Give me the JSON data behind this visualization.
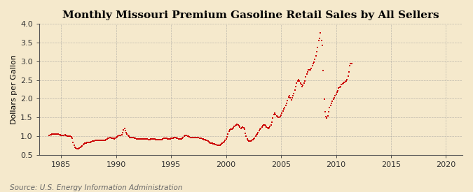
{
  "title": "Monthly Missouri Premium Gasoline Retail Sales by All Sellers",
  "ylabel": "Dollars per Gallon",
  "source": "Source: U.S. Energy Information Administration",
  "ylim": [
    0.5,
    4.0
  ],
  "xlim": [
    1983.0,
    2021.5
  ],
  "yticks": [
    0.5,
    1.0,
    1.5,
    2.0,
    2.5,
    3.0,
    3.5,
    4.0
  ],
  "xticks": [
    1985,
    1990,
    1995,
    2000,
    2005,
    2010,
    2015,
    2020
  ],
  "bg_color": "#f5e9cc",
  "plot_bg_color": "#f5e9cc",
  "line_color": "#cc0000",
  "marker_color": "#cc0000",
  "grid_color": "#999999",
  "title_fontsize": 11,
  "label_fontsize": 8,
  "tick_fontsize": 8,
  "source_fontsize": 7.5,
  "data": [
    [
      1983.917,
      1.02
    ],
    [
      1984.0,
      1.03
    ],
    [
      1984.083,
      1.04
    ],
    [
      1984.167,
      1.05
    ],
    [
      1984.25,
      1.06
    ],
    [
      1984.333,
      1.06
    ],
    [
      1984.417,
      1.06
    ],
    [
      1984.5,
      1.05
    ],
    [
      1984.583,
      1.05
    ],
    [
      1984.667,
      1.05
    ],
    [
      1984.75,
      1.05
    ],
    [
      1984.833,
      1.04
    ],
    [
      1984.917,
      1.03
    ],
    [
      1985.0,
      1.02
    ],
    [
      1985.083,
      1.01
    ],
    [
      1985.167,
      1.02
    ],
    [
      1985.25,
      1.02
    ],
    [
      1985.333,
      1.03
    ],
    [
      1985.417,
      1.02
    ],
    [
      1985.5,
      1.01
    ],
    [
      1985.583,
      1.0
    ],
    [
      1985.667,
      1.0
    ],
    [
      1985.75,
      0.99
    ],
    [
      1985.833,
      0.99
    ],
    [
      1985.917,
      0.98
    ],
    [
      1986.0,
      0.94
    ],
    [
      1986.083,
      0.83
    ],
    [
      1986.167,
      0.76
    ],
    [
      1986.25,
      0.7
    ],
    [
      1986.333,
      0.68
    ],
    [
      1986.417,
      0.67
    ],
    [
      1986.5,
      0.66
    ],
    [
      1986.583,
      0.67
    ],
    [
      1986.667,
      0.68
    ],
    [
      1986.75,
      0.7
    ],
    [
      1986.833,
      0.72
    ],
    [
      1986.917,
      0.74
    ],
    [
      1987.0,
      0.77
    ],
    [
      1987.083,
      0.79
    ],
    [
      1987.167,
      0.81
    ],
    [
      1987.25,
      0.82
    ],
    [
      1987.333,
      0.83
    ],
    [
      1987.417,
      0.83
    ],
    [
      1987.5,
      0.83
    ],
    [
      1987.583,
      0.83
    ],
    [
      1987.667,
      0.84
    ],
    [
      1987.75,
      0.85
    ],
    [
      1987.833,
      0.86
    ],
    [
      1987.917,
      0.87
    ],
    [
      1988.0,
      0.87
    ],
    [
      1988.083,
      0.88
    ],
    [
      1988.167,
      0.88
    ],
    [
      1988.25,
      0.89
    ],
    [
      1988.333,
      0.89
    ],
    [
      1988.417,
      0.89
    ],
    [
      1988.5,
      0.89
    ],
    [
      1988.583,
      0.89
    ],
    [
      1988.667,
      0.88
    ],
    [
      1988.75,
      0.88
    ],
    [
      1988.833,
      0.88
    ],
    [
      1988.917,
      0.88
    ],
    [
      1989.0,
      0.89
    ],
    [
      1989.083,
      0.9
    ],
    [
      1989.167,
      0.92
    ],
    [
      1989.25,
      0.94
    ],
    [
      1989.333,
      0.95
    ],
    [
      1989.417,
      0.96
    ],
    [
      1989.5,
      0.96
    ],
    [
      1989.583,
      0.95
    ],
    [
      1989.667,
      0.95
    ],
    [
      1989.75,
      0.94
    ],
    [
      1989.833,
      0.93
    ],
    [
      1989.917,
      0.94
    ],
    [
      1990.0,
      0.96
    ],
    [
      1990.083,
      0.98
    ],
    [
      1990.167,
      1.0
    ],
    [
      1990.25,
      1.01
    ],
    [
      1990.333,
      1.01
    ],
    [
      1990.417,
      1.02
    ],
    [
      1990.5,
      1.04
    ],
    [
      1990.583,
      1.1
    ],
    [
      1990.667,
      1.17
    ],
    [
      1990.75,
      1.2
    ],
    [
      1990.833,
      1.15
    ],
    [
      1990.917,
      1.1
    ],
    [
      1991.0,
      1.06
    ],
    [
      1991.083,
      1.02
    ],
    [
      1991.167,
      0.99
    ],
    [
      1991.25,
      0.97
    ],
    [
      1991.333,
      0.97
    ],
    [
      1991.417,
      0.97
    ],
    [
      1991.5,
      0.96
    ],
    [
      1991.583,
      0.96
    ],
    [
      1991.667,
      0.95
    ],
    [
      1991.75,
      0.94
    ],
    [
      1991.833,
      0.93
    ],
    [
      1991.917,
      0.93
    ],
    [
      1992.0,
      0.93
    ],
    [
      1992.083,
      0.93
    ],
    [
      1992.167,
      0.93
    ],
    [
      1992.25,
      0.93
    ],
    [
      1992.333,
      0.93
    ],
    [
      1992.417,
      0.93
    ],
    [
      1992.5,
      0.93
    ],
    [
      1992.583,
      0.93
    ],
    [
      1992.667,
      0.92
    ],
    [
      1992.75,
      0.92
    ],
    [
      1992.833,
      0.92
    ],
    [
      1992.917,
      0.91
    ],
    [
      1993.0,
      0.91
    ],
    [
      1993.083,
      0.91
    ],
    [
      1993.167,
      0.92
    ],
    [
      1993.25,
      0.92
    ],
    [
      1993.333,
      0.92
    ],
    [
      1993.417,
      0.92
    ],
    [
      1993.5,
      0.92
    ],
    [
      1993.583,
      0.91
    ],
    [
      1993.667,
      0.91
    ],
    [
      1993.75,
      0.91
    ],
    [
      1993.833,
      0.9
    ],
    [
      1993.917,
      0.9
    ],
    [
      1994.0,
      0.9
    ],
    [
      1994.083,
      0.9
    ],
    [
      1994.167,
      0.91
    ],
    [
      1994.25,
      0.93
    ],
    [
      1994.333,
      0.94
    ],
    [
      1994.417,
      0.95
    ],
    [
      1994.5,
      0.95
    ],
    [
      1994.583,
      0.94
    ],
    [
      1994.667,
      0.93
    ],
    [
      1994.75,
      0.93
    ],
    [
      1994.833,
      0.93
    ],
    [
      1994.917,
      0.93
    ],
    [
      1995.0,
      0.94
    ],
    [
      1995.083,
      0.94
    ],
    [
      1995.167,
      0.95
    ],
    [
      1995.25,
      0.96
    ],
    [
      1995.333,
      0.96
    ],
    [
      1995.417,
      0.96
    ],
    [
      1995.5,
      0.95
    ],
    [
      1995.583,
      0.94
    ],
    [
      1995.667,
      0.93
    ],
    [
      1995.75,
      0.92
    ],
    [
      1995.833,
      0.92
    ],
    [
      1995.917,
      0.92
    ],
    [
      1996.0,
      0.95
    ],
    [
      1996.083,
      0.97
    ],
    [
      1996.167,
      1.0
    ],
    [
      1996.25,
      1.02
    ],
    [
      1996.333,
      1.02
    ],
    [
      1996.417,
      1.01
    ],
    [
      1996.5,
      1.0
    ],
    [
      1996.583,
      0.99
    ],
    [
      1996.667,
      0.98
    ],
    [
      1996.75,
      0.97
    ],
    [
      1996.833,
      0.96
    ],
    [
      1996.917,
      0.96
    ],
    [
      1997.0,
      0.96
    ],
    [
      1997.083,
      0.97
    ],
    [
      1997.167,
      0.97
    ],
    [
      1997.25,
      0.97
    ],
    [
      1997.333,
      0.97
    ],
    [
      1997.417,
      0.97
    ],
    [
      1997.5,
      0.96
    ],
    [
      1997.583,
      0.95
    ],
    [
      1997.667,
      0.95
    ],
    [
      1997.75,
      0.94
    ],
    [
      1997.833,
      0.93
    ],
    [
      1997.917,
      0.92
    ],
    [
      1998.0,
      0.91
    ],
    [
      1998.083,
      0.9
    ],
    [
      1998.167,
      0.89
    ],
    [
      1998.25,
      0.88
    ],
    [
      1998.333,
      0.87
    ],
    [
      1998.417,
      0.85
    ],
    [
      1998.5,
      0.84
    ],
    [
      1998.583,
      0.82
    ],
    [
      1998.667,
      0.81
    ],
    [
      1998.75,
      0.81
    ],
    [
      1998.833,
      0.8
    ],
    [
      1998.917,
      0.79
    ],
    [
      1999.0,
      0.78
    ],
    [
      1999.083,
      0.77
    ],
    [
      1999.167,
      0.76
    ],
    [
      1999.25,
      0.75
    ],
    [
      1999.333,
      0.75
    ],
    [
      1999.417,
      0.76
    ],
    [
      1999.5,
      0.78
    ],
    [
      1999.583,
      0.79
    ],
    [
      1999.667,
      0.81
    ],
    [
      1999.75,
      0.83
    ],
    [
      1999.833,
      0.85
    ],
    [
      1999.917,
      0.88
    ],
    [
      2000.0,
      0.93
    ],
    [
      2000.083,
      0.98
    ],
    [
      2000.167,
      1.06
    ],
    [
      2000.25,
      1.13
    ],
    [
      2000.333,
      1.16
    ],
    [
      2000.417,
      1.18
    ],
    [
      2000.5,
      1.18
    ],
    [
      2000.583,
      1.2
    ],
    [
      2000.667,
      1.23
    ],
    [
      2000.75,
      1.26
    ],
    [
      2000.833,
      1.28
    ],
    [
      2000.917,
      1.3
    ],
    [
      2001.0,
      1.32
    ],
    [
      2001.083,
      1.3
    ],
    [
      2001.167,
      1.27
    ],
    [
      2001.25,
      1.24
    ],
    [
      2001.333,
      1.21
    ],
    [
      2001.417,
      1.23
    ],
    [
      2001.5,
      1.25
    ],
    [
      2001.583,
      1.22
    ],
    [
      2001.667,
      1.18
    ],
    [
      2001.75,
      1.08
    ],
    [
      2001.833,
      1.0
    ],
    [
      2001.917,
      0.93
    ],
    [
      2002.0,
      0.89
    ],
    [
      2002.083,
      0.87
    ],
    [
      2002.167,
      0.86
    ],
    [
      2002.25,
      0.87
    ],
    [
      2002.333,
      0.88
    ],
    [
      2002.417,
      0.9
    ],
    [
      2002.5,
      0.92
    ],
    [
      2002.583,
      0.95
    ],
    [
      2002.667,
      0.99
    ],
    [
      2002.75,
      1.03
    ],
    [
      2002.833,
      1.06
    ],
    [
      2002.917,
      1.1
    ],
    [
      2003.0,
      1.15
    ],
    [
      2003.083,
      1.18
    ],
    [
      2003.167,
      1.2
    ],
    [
      2003.25,
      1.25
    ],
    [
      2003.333,
      1.28
    ],
    [
      2003.417,
      1.3
    ],
    [
      2003.5,
      1.3
    ],
    [
      2003.583,
      1.27
    ],
    [
      2003.667,
      1.25
    ],
    [
      2003.75,
      1.22
    ],
    [
      2003.833,
      1.2
    ],
    [
      2003.917,
      1.22
    ],
    [
      2004.0,
      1.26
    ],
    [
      2004.083,
      1.3
    ],
    [
      2004.167,
      1.38
    ],
    [
      2004.25,
      1.48
    ],
    [
      2004.333,
      1.57
    ],
    [
      2004.417,
      1.61
    ],
    [
      2004.5,
      1.58
    ],
    [
      2004.583,
      1.55
    ],
    [
      2004.667,
      1.52
    ],
    [
      2004.75,
      1.5
    ],
    [
      2004.833,
      1.5
    ],
    [
      2004.917,
      1.52
    ],
    [
      2005.0,
      1.56
    ],
    [
      2005.083,
      1.62
    ],
    [
      2005.167,
      1.68
    ],
    [
      2005.25,
      1.73
    ],
    [
      2005.333,
      1.77
    ],
    [
      2005.417,
      1.82
    ],
    [
      2005.5,
      1.88
    ],
    [
      2005.583,
      1.95
    ],
    [
      2005.667,
      2.05
    ],
    [
      2005.75,
      2.08
    ],
    [
      2005.833,
      2.02
    ],
    [
      2005.917,
      1.97
    ],
    [
      2006.0,
      2.02
    ],
    [
      2006.083,
      2.08
    ],
    [
      2006.167,
      2.14
    ],
    [
      2006.25,
      2.24
    ],
    [
      2006.333,
      2.32
    ],
    [
      2006.417,
      2.42
    ],
    [
      2006.5,
      2.48
    ],
    [
      2006.583,
      2.52
    ],
    [
      2006.667,
      2.47
    ],
    [
      2006.75,
      2.42
    ],
    [
      2006.833,
      2.38
    ],
    [
      2006.917,
      2.32
    ],
    [
      2007.0,
      2.37
    ],
    [
      2007.083,
      2.42
    ],
    [
      2007.167,
      2.48
    ],
    [
      2007.25,
      2.58
    ],
    [
      2007.333,
      2.67
    ],
    [
      2007.417,
      2.72
    ],
    [
      2007.5,
      2.77
    ],
    [
      2007.583,
      2.78
    ],
    [
      2007.667,
      2.78
    ],
    [
      2007.75,
      2.82
    ],
    [
      2007.833,
      2.88
    ],
    [
      2007.917,
      2.94
    ],
    [
      2008.0,
      2.98
    ],
    [
      2008.083,
      3.05
    ],
    [
      2008.167,
      3.15
    ],
    [
      2008.25,
      3.25
    ],
    [
      2008.333,
      3.38
    ],
    [
      2008.417,
      3.55
    ],
    [
      2008.5,
      3.62
    ],
    [
      2008.583,
      3.76
    ],
    [
      2008.667,
      3.55
    ],
    [
      2008.75,
      3.42
    ],
    [
      2008.833,
      2.75
    ],
    [
      2008.917,
      1.98
    ],
    [
      2009.0,
      1.65
    ],
    [
      2009.083,
      1.52
    ],
    [
      2009.167,
      1.48
    ],
    [
      2009.25,
      1.55
    ],
    [
      2009.333,
      1.66
    ],
    [
      2009.417,
      1.76
    ],
    [
      2009.5,
      1.82
    ],
    [
      2009.583,
      1.88
    ],
    [
      2009.667,
      1.93
    ],
    [
      2009.75,
      1.98
    ],
    [
      2009.833,
      2.03
    ],
    [
      2009.917,
      2.08
    ],
    [
      2010.0,
      2.12
    ],
    [
      2010.083,
      2.17
    ],
    [
      2010.167,
      2.22
    ],
    [
      2010.25,
      2.28
    ],
    [
      2010.333,
      2.3
    ],
    [
      2010.417,
      2.33
    ],
    [
      2010.5,
      2.38
    ],
    [
      2010.583,
      2.4
    ],
    [
      2010.667,
      2.42
    ],
    [
      2010.75,
      2.44
    ],
    [
      2010.833,
      2.46
    ],
    [
      2010.917,
      2.48
    ],
    [
      2011.0,
      2.52
    ],
    [
      2011.083,
      2.6
    ],
    [
      2011.167,
      2.72
    ],
    [
      2011.25,
      2.88
    ],
    [
      2011.333,
      2.95
    ],
    [
      2011.417,
      2.95
    ]
  ]
}
